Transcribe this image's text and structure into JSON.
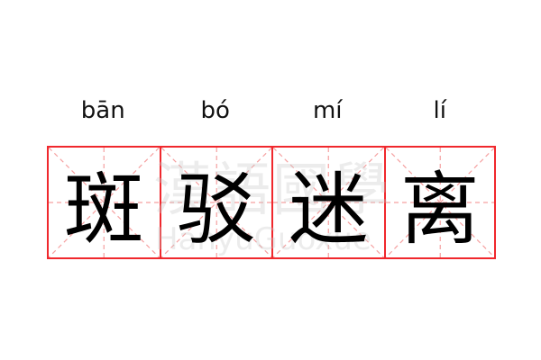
{
  "words": [
    {
      "pinyin": "bān",
      "char": "斑"
    },
    {
      "pinyin": "bó",
      "char": "驳"
    },
    {
      "pinyin": "mí",
      "char": "迷"
    },
    {
      "pinyin": "lí",
      "char": "离"
    }
  ],
  "watermark": {
    "chinese": "漢語國學",
    "latin": "HanyuGuoxue"
  },
  "colors": {
    "grid_border": "#f0282d",
    "guide_lines": "#f5a0a0",
    "text": "#000000"
  }
}
